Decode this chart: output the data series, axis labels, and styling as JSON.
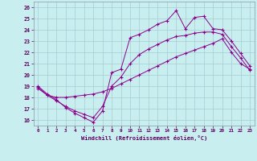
{
  "xlabel": "Windchill (Refroidissement éolien,°C)",
  "bg_color": "#c8eef0",
  "line_color": "#8b008b",
  "grid_color": "#a8ccd0",
  "xlim": [
    -0.5,
    23.5
  ],
  "ylim": [
    15.5,
    26.5
  ],
  "yticks": [
    16,
    17,
    18,
    19,
    20,
    21,
    22,
    23,
    24,
    25,
    26
  ],
  "xticks": [
    0,
    1,
    2,
    3,
    4,
    5,
    6,
    7,
    8,
    9,
    10,
    11,
    12,
    13,
    14,
    15,
    16,
    17,
    18,
    19,
    20,
    21,
    22,
    23
  ],
  "series": [
    {
      "x": [
        0,
        1,
        2,
        3,
        4,
        5,
        6,
        7,
        8,
        9,
        10,
        11,
        12,
        13,
        14,
        15,
        16,
        17,
        18,
        19,
        20,
        21,
        22,
        23
      ],
      "y": [
        19.0,
        18.3,
        17.8,
        17.1,
        16.6,
        16.2,
        15.8,
        16.8,
        20.2,
        20.5,
        23.3,
        23.6,
        24.0,
        24.5,
        24.8,
        25.7,
        24.1,
        25.1,
        25.2,
        24.1,
        24.0,
        23.0,
        21.9,
        20.8
      ]
    },
    {
      "x": [
        0,
        1,
        2,
        3,
        4,
        5,
        6,
        7,
        8,
        9,
        10,
        11,
        12,
        13,
        14,
        15,
        16,
        17,
        18,
        19,
        20,
        21,
        22,
        23
      ],
      "y": [
        18.8,
        18.2,
        18.0,
        18.0,
        18.1,
        18.2,
        18.3,
        18.5,
        18.8,
        19.2,
        19.6,
        20.0,
        20.4,
        20.8,
        21.2,
        21.6,
        21.9,
        22.2,
        22.5,
        22.8,
        23.2,
        22.0,
        21.0,
        20.5
      ]
    },
    {
      "x": [
        0,
        1,
        2,
        3,
        4,
        5,
        6,
        7,
        8,
        9,
        10,
        11,
        12,
        13,
        14,
        15,
        16,
        17,
        18,
        19,
        20,
        21,
        22,
        23
      ],
      "y": [
        18.9,
        18.2,
        17.7,
        17.2,
        16.8,
        16.5,
        16.2,
        17.2,
        19.0,
        19.8,
        21.0,
        21.8,
        22.3,
        22.7,
        23.1,
        23.4,
        23.5,
        23.7,
        23.8,
        23.8,
        23.6,
        22.5,
        21.5,
        20.4
      ]
    }
  ]
}
